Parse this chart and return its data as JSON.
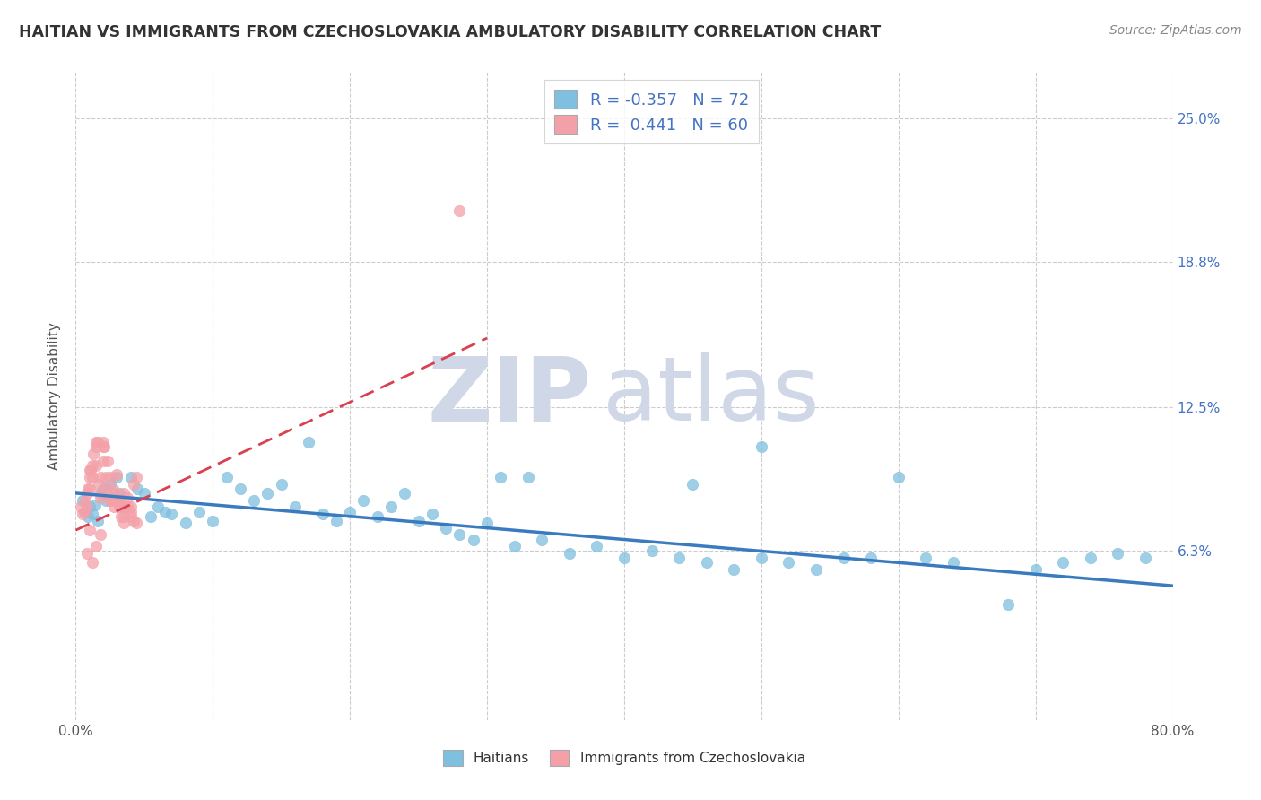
{
  "title": "HAITIAN VS IMMIGRANTS FROM CZECHOSLOVAKIA AMBULATORY DISABILITY CORRELATION CHART",
  "source": "Source: ZipAtlas.com",
  "ylabel": "Ambulatory Disability",
  "xmin": 0.0,
  "xmax": 0.8,
  "ymin": -0.01,
  "ymax": 0.27,
  "ytick_vals": [
    0.063,
    0.125,
    0.188,
    0.25
  ],
  "ytick_labels": [
    "6.3%",
    "12.5%",
    "18.8%",
    "25.0%"
  ],
  "blue_R": -0.357,
  "blue_N": 72,
  "pink_R": 0.441,
  "pink_N": 60,
  "blue_color": "#7fbfdf",
  "pink_color": "#f4a0a8",
  "blue_line_color": "#3a7bbf",
  "pink_line_color": "#d94050",
  "pink_line_style": "--",
  "watermark_zip": "ZIP",
  "watermark_atlas": "atlas",
  "legend_label_blue": "Haitians",
  "legend_label_pink": "Immigrants from Czechoslovakia",
  "blue_scatter_x": [
    0.005,
    0.007,
    0.009,
    0.01,
    0.012,
    0.014,
    0.016,
    0.018,
    0.02,
    0.022,
    0.025,
    0.028,
    0.03,
    0.032,
    0.035,
    0.04,
    0.045,
    0.05,
    0.055,
    0.06,
    0.065,
    0.07,
    0.08,
    0.09,
    0.1,
    0.11,
    0.12,
    0.13,
    0.14,
    0.15,
    0.16,
    0.17,
    0.18,
    0.19,
    0.2,
    0.21,
    0.22,
    0.23,
    0.24,
    0.25,
    0.26,
    0.27,
    0.28,
    0.29,
    0.3,
    0.31,
    0.32,
    0.33,
    0.34,
    0.36,
    0.38,
    0.4,
    0.42,
    0.44,
    0.46,
    0.48,
    0.5,
    0.52,
    0.54,
    0.56,
    0.58,
    0.6,
    0.62,
    0.64,
    0.68,
    0.7,
    0.72,
    0.74,
    0.76,
    0.78,
    0.5,
    0.45
  ],
  "blue_scatter_y": [
    0.085,
    0.08,
    0.078,
    0.082,
    0.079,
    0.083,
    0.076,
    0.088,
    0.09,
    0.085,
    0.092,
    0.086,
    0.095,
    0.088,
    0.082,
    0.095,
    0.09,
    0.088,
    0.078,
    0.082,
    0.08,
    0.079,
    0.075,
    0.08,
    0.076,
    0.095,
    0.09,
    0.085,
    0.088,
    0.092,
    0.082,
    0.11,
    0.079,
    0.076,
    0.08,
    0.085,
    0.078,
    0.082,
    0.088,
    0.076,
    0.079,
    0.073,
    0.07,
    0.068,
    0.075,
    0.095,
    0.065,
    0.095,
    0.068,
    0.062,
    0.065,
    0.06,
    0.063,
    0.06,
    0.058,
    0.055,
    0.06,
    0.058,
    0.055,
    0.06,
    0.06,
    0.095,
    0.06,
    0.058,
    0.04,
    0.055,
    0.058,
    0.06,
    0.062,
    0.06,
    0.108,
    0.092
  ],
  "pink_scatter_x": [
    0.004,
    0.006,
    0.007,
    0.008,
    0.009,
    0.01,
    0.011,
    0.012,
    0.013,
    0.015,
    0.016,
    0.017,
    0.018,
    0.019,
    0.02,
    0.021,
    0.022,
    0.023,
    0.025,
    0.027,
    0.028,
    0.03,
    0.032,
    0.033,
    0.035,
    0.036,
    0.038,
    0.04,
    0.042,
    0.044,
    0.005,
    0.008,
    0.01,
    0.012,
    0.015,
    0.018,
    0.02,
    0.022,
    0.025,
    0.028,
    0.03,
    0.032,
    0.035,
    0.038,
    0.04,
    0.042,
    0.044,
    0.01,
    0.015,
    0.02,
    0.025,
    0.03,
    0.035,
    0.04,
    0.01,
    0.015,
    0.008,
    0.012,
    0.28,
    0.018
  ],
  "pink_scatter_y": [
    0.082,
    0.08,
    0.085,
    0.088,
    0.09,
    0.095,
    0.098,
    0.1,
    0.105,
    0.108,
    0.11,
    0.092,
    0.086,
    0.088,
    0.11,
    0.108,
    0.095,
    0.102,
    0.085,
    0.09,
    0.088,
    0.096,
    0.082,
    0.078,
    0.088,
    0.082,
    0.086,
    0.082,
    0.092,
    0.095,
    0.079,
    0.082,
    0.09,
    0.095,
    0.1,
    0.095,
    0.108,
    0.09,
    0.085,
    0.082,
    0.085,
    0.086,
    0.075,
    0.082,
    0.08,
    0.076,
    0.075,
    0.098,
    0.11,
    0.102,
    0.095,
    0.085,
    0.078,
    0.078,
    0.072,
    0.065,
    0.062,
    0.058,
    0.21,
    0.07
  ],
  "blue_trend_x": [
    0.0,
    0.8
  ],
  "blue_trend_y": [
    0.088,
    0.048
  ],
  "pink_trend_x": [
    0.0,
    0.3
  ],
  "pink_trend_y": [
    0.072,
    0.155
  ]
}
